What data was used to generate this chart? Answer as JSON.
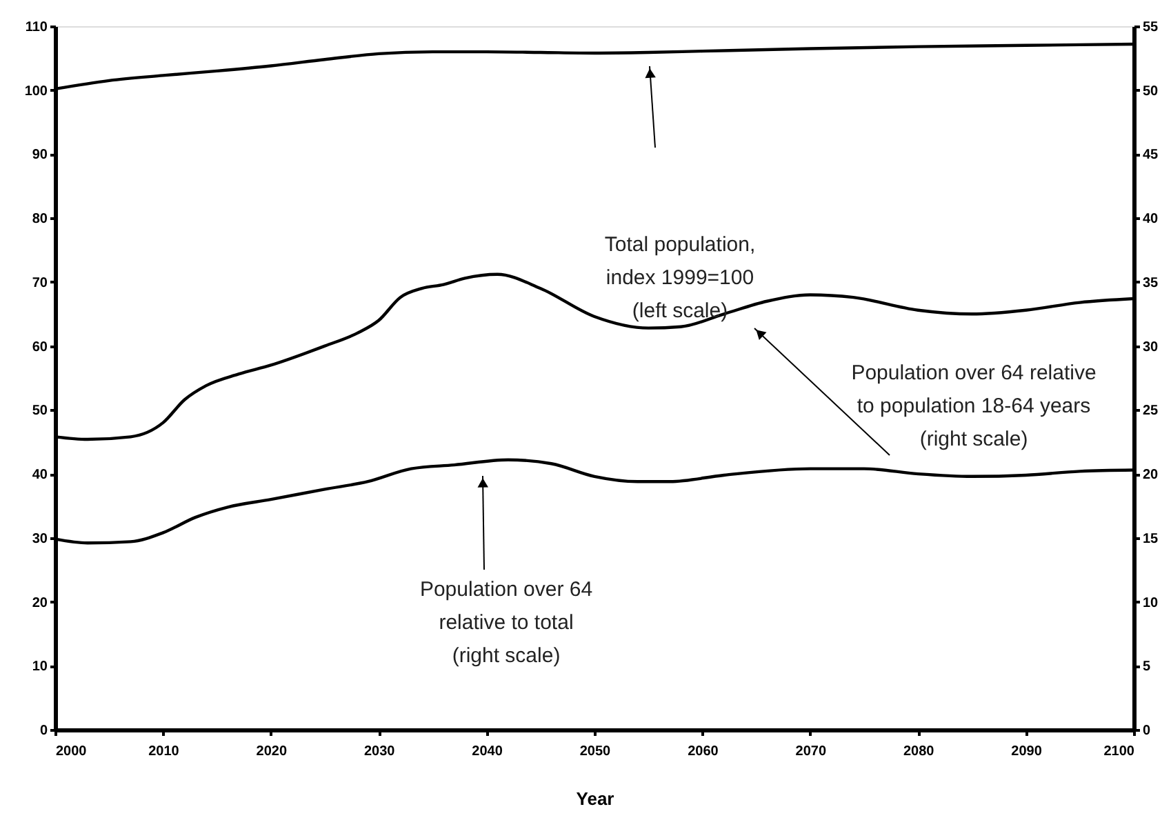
{
  "chart_data": {
    "type": "line",
    "xlabel": "Year",
    "xlim": [
      2000,
      2100
    ],
    "xticks": [
      2000,
      2010,
      2020,
      2030,
      2040,
      2050,
      2060,
      2070,
      2080,
      2090,
      2100
    ],
    "ylim": [
      0,
      110
    ],
    "yticks": [
      0,
      10,
      20,
      30,
      40,
      50,
      60,
      70,
      80,
      90,
      100,
      110
    ],
    "y2lim": [
      0,
      55
    ],
    "y2ticks": [
      0,
      5,
      10,
      15,
      20,
      25,
      30,
      35,
      40,
      45,
      50,
      55
    ],
    "grid": false,
    "marker": "none",
    "line_style": "solid",
    "series": [
      {
        "color": "#000000",
        "axis": "y",
        "x": [
          2000,
          2005,
          2010,
          2015,
          2020,
          2025,
          2030,
          2035,
          2040,
          2045,
          2050,
          2055,
          2060,
          2070,
          2080,
          2090,
          2100
        ],
        "values": [
          100.2,
          101.5,
          102.3,
          103,
          103.8,
          104.8,
          105.7,
          106,
          106,
          105.9,
          105.8,
          105.9,
          106.1,
          106.5,
          106.8,
          107,
          107.2
        ]
      },
      {
        "color": "#000000",
        "axis": "y2",
        "x": [
          2000,
          2003,
          2007,
          2010,
          2012,
          2014,
          2017,
          2020,
          2025,
          2028,
          2030,
          2032,
          2034,
          2036,
          2038,
          2041,
          2045,
          2050,
          2055,
          2058,
          2062,
          2066,
          2070,
          2074,
          2080,
          2085,
          2090,
          2095,
          2100
        ],
        "values": [
          22.9,
          22.7,
          22.9,
          24,
          25.8,
          26.9,
          27.8,
          28.5,
          30,
          31,
          32,
          33.8,
          34.5,
          34.8,
          35.3,
          35.6,
          34.5,
          32.3,
          31.4,
          31.5,
          32.5,
          33.5,
          34,
          33.8,
          32.8,
          32.5,
          32.8,
          33.4,
          33.7
        ]
      },
      {
        "color": "#000000",
        "axis": "y2",
        "x": [
          2000,
          2003,
          2007,
          2010,
          2013,
          2016,
          2020,
          2025,
          2029,
          2033,
          2037,
          2042,
          2046,
          2050,
          2054,
          2057,
          2062,
          2070,
          2075,
          2080,
          2085,
          2090,
          2095,
          2100
        ],
        "values": [
          14.9,
          14.6,
          14.7,
          15.4,
          16.6,
          17.4,
          18,
          18.8,
          19.4,
          20.4,
          20.7,
          21.1,
          20.8,
          19.8,
          19.4,
          19.4,
          19.9,
          20.4,
          20.4,
          20,
          19.8,
          19.9,
          20.2,
          20.3
        ]
      }
    ],
    "annotations": [
      "Total population,\nindex 1999=100\n(left scale)",
      "Population over 64 relative\nto population 18-64 years\n(right scale)",
      "Population over 64\nrelative to total\n(right scale)"
    ]
  }
}
